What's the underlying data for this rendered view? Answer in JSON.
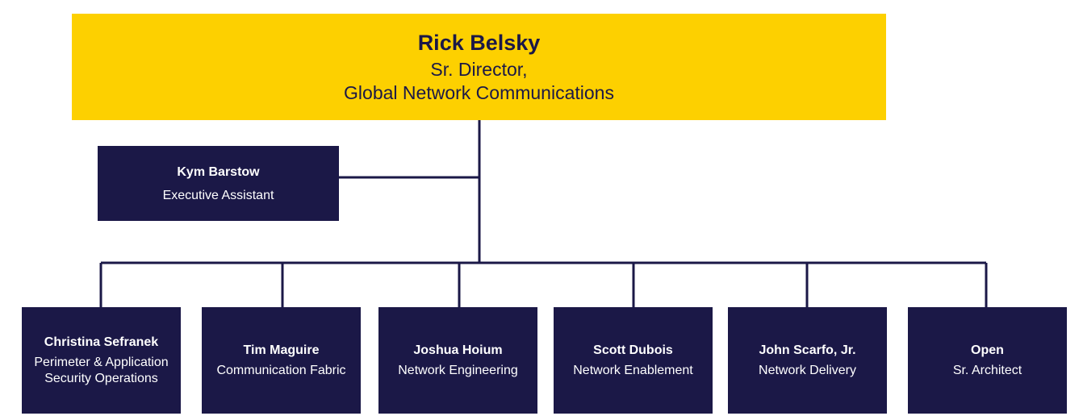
{
  "head": {
    "name": "Rick Belsky",
    "title": "Sr. Director,\nGlobal Network Communications"
  },
  "assistant": {
    "name": "Kym Barstow",
    "title": "Executive Assistant"
  },
  "reports": [
    {
      "name": "Christina Sefranek",
      "title": "Perimeter & Application Security Operations"
    },
    {
      "name": "Tim Maguire",
      "title": "Communication Fabric"
    },
    {
      "name": "Joshua Hoium",
      "title": "Network Engineering"
    },
    {
      "name": "Scott Dubois",
      "title": "Network Enablement"
    },
    {
      "name": "John Scarfo, Jr.",
      "title": "Network Delivery"
    },
    {
      "name": "Open",
      "title": "Sr. Architect"
    }
  ],
  "colors": {
    "head_fill": "#fdd000",
    "box_fill": "#1b1847",
    "connector": "#1b1847",
    "head_text": "#1b1847",
    "box_text": "#ffffff"
  }
}
